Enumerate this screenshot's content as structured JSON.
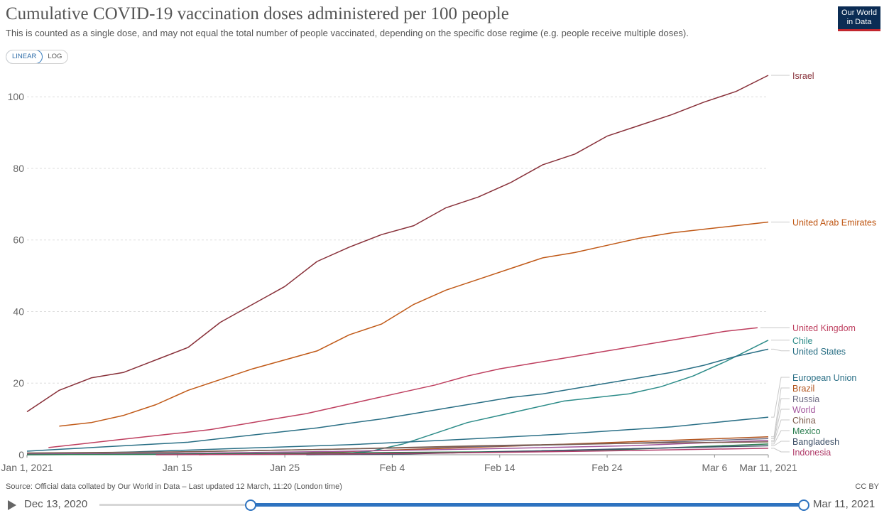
{
  "header": {
    "title": "Cumulative COVID-19 vaccination doses administered per 100 people",
    "subtitle": "This is counted as a single dose, and may not equal the total number of people vaccinated, depending on the specific dose regime (e.g. people receive multiple doses).",
    "logo_line1": "Our World",
    "logo_line2": "in Data"
  },
  "controls": {
    "linear_label": "LINEAR",
    "log_label": "LOG",
    "active_scale": "linear"
  },
  "footer": {
    "source": "Source: Official data collated by Our World in Data – Last updated 12 March, 11:20 (London time)",
    "license": "CC BY"
  },
  "timeline": {
    "start_label": "Dec 13, 2020",
    "end_label": "Mar 11, 2021",
    "range_start": 0.215,
    "range_end": 1.0
  },
  "chart_data": {
    "type": "line",
    "title": "Cumulative COVID-19 vaccination doses administered per 100 people",
    "x_range": [
      "2021-01-01",
      "2021-03-11"
    ],
    "ylim": [
      0,
      106
    ],
    "yticks": [
      0,
      20,
      40,
      60,
      80,
      100
    ],
    "xticks": [
      {
        "date": "2021-01-01",
        "label": "Jan 1, 2021"
      },
      {
        "date": "2021-01-15",
        "label": "Jan 15"
      },
      {
        "date": "2021-01-25",
        "label": "Jan 25"
      },
      {
        "date": "2021-02-04",
        "label": "Feb 4"
      },
      {
        "date": "2021-02-14",
        "label": "Feb 14"
      },
      {
        "date": "2021-02-24",
        "label": "Feb 24"
      },
      {
        "date": "2021-03-06",
        "label": "Mar 6"
      },
      {
        "date": "2021-03-11",
        "label": "Mar 11, 2021"
      }
    ],
    "grid": true,
    "legend": "labels at line ends (right)",
    "series": [
      {
        "name": "Israel",
        "color": "#883039",
        "x": [
          "2021-01-01",
          "2021-01-04",
          "2021-01-07",
          "2021-01-10",
          "2021-01-13",
          "2021-01-16",
          "2021-01-19",
          "2021-01-22",
          "2021-01-25",
          "2021-01-28",
          "2021-01-31",
          "2021-02-03",
          "2021-02-06",
          "2021-02-09",
          "2021-02-12",
          "2021-02-15",
          "2021-02-18",
          "2021-02-21",
          "2021-02-24",
          "2021-02-27",
          "2021-03-02",
          "2021-03-05",
          "2021-03-08",
          "2021-03-11"
        ],
        "y": [
          12,
          18,
          21.5,
          23,
          26.5,
          30,
          37,
          42,
          47,
          54,
          58,
          61.5,
          64,
          69,
          72,
          76,
          81,
          84,
          89,
          92,
          95,
          98.5,
          101.5,
          106
        ]
      },
      {
        "name": "United Arab Emirates",
        "color": "#c05917",
        "x": [
          "2021-01-04",
          "2021-01-07",
          "2021-01-10",
          "2021-01-13",
          "2021-01-16",
          "2021-01-19",
          "2021-01-22",
          "2021-01-25",
          "2021-01-28",
          "2021-01-31",
          "2021-02-03",
          "2021-02-06",
          "2021-02-09",
          "2021-02-12",
          "2021-02-15",
          "2021-02-18",
          "2021-02-21",
          "2021-02-24",
          "2021-02-27",
          "2021-03-02",
          "2021-03-05",
          "2021-03-08",
          "2021-03-11"
        ],
        "y": [
          8,
          9,
          11,
          14,
          18,
          21,
          24,
          26.5,
          29,
          33.5,
          36.5,
          42,
          46,
          49,
          52,
          55,
          56.5,
          58.5,
          60.5,
          62,
          63,
          64,
          65
        ]
      },
      {
        "name": "United Kingdom",
        "color": "#be3f5f",
        "x": [
          "2021-01-03",
          "2021-01-06",
          "2021-01-09",
          "2021-01-12",
          "2021-01-15",
          "2021-01-18",
          "2021-01-21",
          "2021-01-24",
          "2021-01-27",
          "2021-01-30",
          "2021-02-02",
          "2021-02-05",
          "2021-02-08",
          "2021-02-11",
          "2021-02-14",
          "2021-02-17",
          "2021-02-20",
          "2021-02-23",
          "2021-02-26",
          "2021-03-01",
          "2021-03-04",
          "2021-03-07",
          "2021-03-10"
        ],
        "y": [
          2,
          3,
          4,
          5,
          6,
          7,
          8.5,
          10,
          11.5,
          13.5,
          15.5,
          17.5,
          19.5,
          22,
          24,
          25.5,
          27,
          28.5,
          30,
          31.5,
          33,
          34.5,
          35.5
        ]
      },
      {
        "name": "Chile",
        "color": "#2d8c89",
        "x": [
          "2021-01-01",
          "2021-01-10",
          "2021-01-20",
          "2021-01-30",
          "2021-02-02",
          "2021-02-05",
          "2021-02-08",
          "2021-02-11",
          "2021-02-14",
          "2021-02-17",
          "2021-02-20",
          "2021-02-23",
          "2021-02-26",
          "2021-03-01",
          "2021-03-04",
          "2021-03-07",
          "2021-03-11"
        ],
        "y": [
          0,
          0.1,
          0.2,
          0.2,
          1,
          3,
          6,
          9,
          11,
          13,
          15,
          16,
          17,
          19,
          22,
          26,
          32
        ]
      },
      {
        "name": "United States",
        "color": "#286e84",
        "x": [
          "2021-01-01",
          "2021-01-04",
          "2021-01-07",
          "2021-01-10",
          "2021-01-13",
          "2021-01-16",
          "2021-01-19",
          "2021-01-22",
          "2021-01-25",
          "2021-01-28",
          "2021-01-31",
          "2021-02-03",
          "2021-02-06",
          "2021-02-09",
          "2021-02-12",
          "2021-02-15",
          "2021-02-18",
          "2021-02-21",
          "2021-02-24",
          "2021-02-27",
          "2021-03-02",
          "2021-03-05",
          "2021-03-08",
          "2021-03-11"
        ],
        "y": [
          1,
          1.5,
          2,
          2.5,
          3,
          3.5,
          4.5,
          5.5,
          6.5,
          7.5,
          8.8,
          10,
          11.5,
          13,
          14.5,
          16,
          17,
          18.5,
          20,
          21.5,
          23,
          25,
          27.5,
          29.5
        ]
      },
      {
        "name": "European Union",
        "color": "#2a6f86",
        "x": [
          "2021-01-01",
          "2021-01-11",
          "2021-01-21",
          "2021-01-31",
          "2021-02-10",
          "2021-02-20",
          "2021-03-02",
          "2021-03-11"
        ],
        "y": [
          0.1,
          0.8,
          1.8,
          2.8,
          4.2,
          5.8,
          7.8,
          10.5
        ]
      },
      {
        "name": "Brazil",
        "color": "#b1531c",
        "x": [
          "2021-01-17",
          "2021-01-27",
          "2021-02-06",
          "2021-02-16",
          "2021-02-26",
          "2021-03-11"
        ],
        "y": [
          0,
          0.5,
          1.5,
          2.5,
          3.6,
          5
        ]
      },
      {
        "name": "Russia",
        "color": "#6e6c83",
        "x": [
          "2021-01-01",
          "2021-01-15",
          "2021-01-29",
          "2021-02-12",
          "2021-02-26",
          "2021-03-11"
        ],
        "y": [
          0.3,
          0.8,
          1.5,
          2.3,
          3.2,
          4.5
        ]
      },
      {
        "name": "World",
        "color": "#a2559c",
        "x": [
          "2021-01-01",
          "2021-01-15",
          "2021-01-29",
          "2021-02-12",
          "2021-02-26",
          "2021-03-11"
        ],
        "y": [
          0.1,
          0.4,
          0.9,
          1.6,
          2.5,
          4
        ]
      },
      {
        "name": "China",
        "color": "#7d5c4c",
        "x": [
          "2021-01-01",
          "2021-01-15",
          "2021-01-29",
          "2021-02-12",
          "2021-02-26",
          "2021-03-11"
        ],
        "y": [
          0.5,
          0.8,
          1.5,
          2.5,
          3.2,
          3.6
        ]
      },
      {
        "name": "Mexico",
        "color": "#2a7d4f",
        "x": [
          "2021-01-01",
          "2021-01-15",
          "2021-01-29",
          "2021-02-12",
          "2021-02-26",
          "2021-03-11"
        ],
        "y": [
          0,
          0.2,
          0.5,
          0.8,
          1.5,
          3
        ]
      },
      {
        "name": "Bangladesh",
        "color": "#3c4e66",
        "x": [
          "2021-01-27",
          "2021-02-05",
          "2021-02-15",
          "2021-02-25",
          "2021-03-11"
        ],
        "y": [
          0,
          0.2,
          0.9,
          1.6,
          2.5
        ]
      },
      {
        "name": "Indonesia",
        "color": "#b03b69",
        "x": [
          "2021-01-13",
          "2021-01-23",
          "2021-02-02",
          "2021-02-12",
          "2021-02-22",
          "2021-03-11"
        ],
        "y": [
          0,
          0.1,
          0.3,
          0.6,
          1,
          1.8
        ]
      }
    ],
    "end_labels": [
      {
        "name": "Israel",
        "value": 106
      },
      {
        "name": "United Arab Emirates",
        "value": 65
      },
      {
        "name": "United Kingdom",
        "value": 35.5
      },
      {
        "name": "Chile",
        "value": 32
      },
      {
        "name": "United States",
        "value": 29.5
      },
      {
        "name": "European Union",
        "value": 10.5
      },
      {
        "name": "Brazil",
        "value": 5
      },
      {
        "name": "Russia",
        "value": 4.5
      },
      {
        "name": "World",
        "value": 4
      },
      {
        "name": "China",
        "value": 3.6
      },
      {
        "name": "Mexico",
        "value": 3
      },
      {
        "name": "Bangladesh",
        "value": 2.5
      },
      {
        "name": "Indonesia",
        "value": 1.8
      }
    ]
  }
}
